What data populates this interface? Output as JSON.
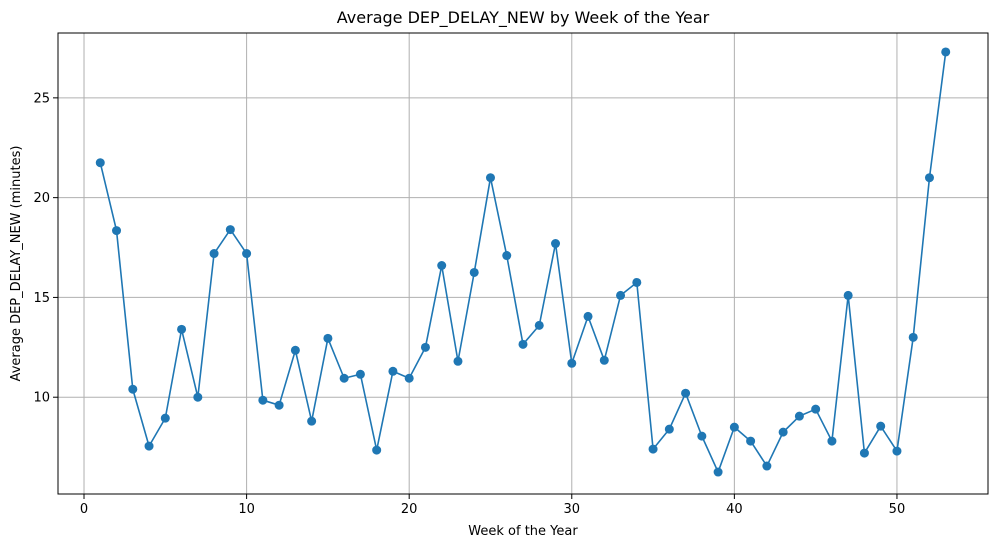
{
  "chart_data": {
    "type": "line",
    "title": "Average DEP_DELAY_NEW by Week of the Year",
    "xlabel": "Week of the Year",
    "ylabel": "Average DEP_DELAY_NEW (minutes)",
    "xlim": [
      -1.6,
      55.6
    ],
    "ylim": [
      5.15,
      28.25
    ],
    "xticks": [
      0,
      10,
      20,
      30,
      40,
      50
    ],
    "yticks": [
      10,
      15,
      20,
      25
    ],
    "grid": true,
    "marker": "circle",
    "color": "#1f77b4",
    "series": [
      {
        "x": [
          1,
          2,
          3,
          4,
          5,
          6,
          7,
          8,
          9,
          10,
          11,
          12,
          13,
          14,
          15,
          16,
          17,
          18,
          19,
          20,
          21,
          22,
          23,
          24,
          25,
          26,
          27,
          28,
          29,
          30,
          31,
          32,
          33,
          34,
          35,
          36,
          37,
          38,
          39,
          40,
          41,
          42,
          43,
          44,
          45,
          46,
          47,
          48,
          49,
          50,
          51,
          52,
          53
        ],
        "values": [
          21.75,
          18.35,
          10.4,
          7.55,
          8.95,
          13.4,
          10.0,
          17.2,
          18.4,
          17.2,
          9.85,
          9.6,
          12.35,
          8.8,
          12.95,
          10.95,
          11.15,
          7.35,
          11.3,
          10.95,
          12.5,
          16.6,
          11.8,
          16.25,
          21.0,
          17.1,
          12.65,
          13.6,
          17.7,
          11.7,
          14.05,
          11.85,
          15.1,
          15.75,
          7.4,
          8.4,
          10.2,
          8.05,
          6.25,
          8.5,
          7.8,
          6.55,
          8.25,
          9.05,
          9.4,
          7.8,
          15.1,
          7.2,
          8.55,
          7.3,
          13.0,
          21.0,
          27.3
        ]
      }
    ]
  }
}
